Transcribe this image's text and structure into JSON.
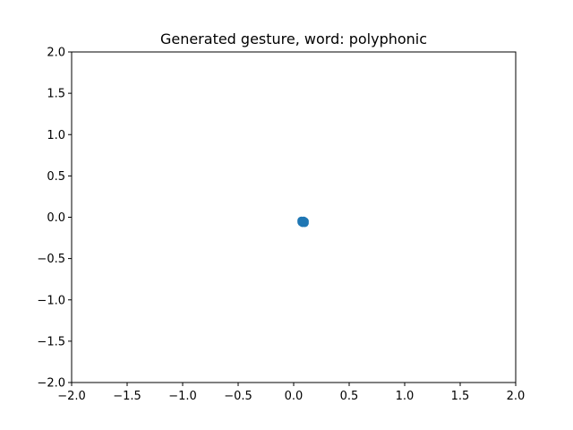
{
  "chart_data": {
    "type": "scatter",
    "title": "Generated gesture, word: polyphonic",
    "xlabel": "",
    "ylabel": "",
    "xlim": [
      -2.0,
      2.0
    ],
    "ylim": [
      -2.0,
      2.0
    ],
    "xticks": [
      -2.0,
      -1.5,
      -1.0,
      -0.5,
      0.0,
      0.5,
      1.0,
      1.5,
      2.0
    ],
    "yticks": [
      -2.0,
      -1.5,
      -1.0,
      -0.5,
      0.0,
      0.5,
      1.0,
      1.5,
      2.0
    ],
    "xtick_labels": [
      "−2.0",
      "−1.5",
      "−1.0",
      "−0.5",
      "0.0",
      "0.5",
      "1.0",
      "1.5",
      "2.0"
    ],
    "ytick_labels": [
      "−2.0",
      "−1.5",
      "−1.0",
      "−0.5",
      "0.0",
      "0.5",
      "1.0",
      "1.5",
      "2.0"
    ],
    "grid": false,
    "legend": "none",
    "series": [
      {
        "color": "#1f77b4",
        "x": [
          0.07,
          0.08,
          0.09,
          0.1,
          0.08,
          0.09,
          0.1,
          0.07,
          0.09
        ],
        "y": [
          -0.04,
          -0.05,
          -0.06,
          -0.05,
          -0.07,
          -0.04,
          -0.07,
          -0.06,
          -0.05
        ]
      }
    ]
  }
}
